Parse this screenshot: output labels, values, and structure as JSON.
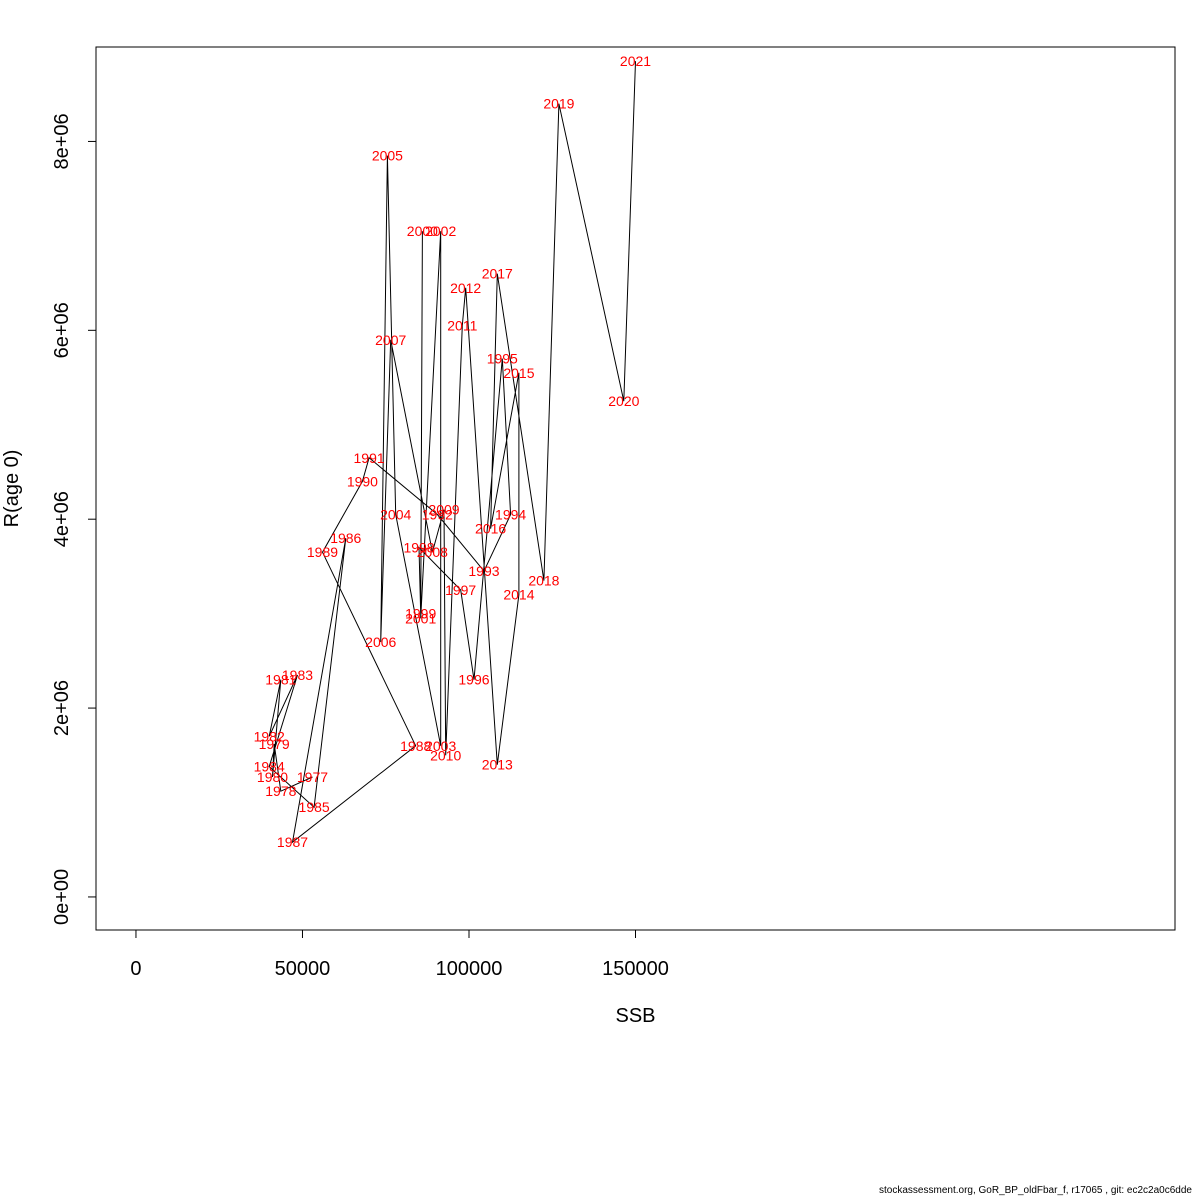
{
  "chart_data": {
    "type": "line",
    "xlabel": "SSB",
    "ylabel": "R(age 0)",
    "xlim": [
      -12000,
      312000
    ],
    "ylim": [
      -350000,
      9000000
    ],
    "xticks": [
      0,
      50000,
      100000,
      150000
    ],
    "xtick_labels": [
      "0",
      "50000",
      "100000",
      "150000"
    ],
    "yticks": [
      0,
      2000000,
      4000000,
      6000000,
      8000000
    ],
    "ytick_labels": [
      "0e+00",
      "2e+06",
      "4e+06",
      "6e+06",
      "8e+06"
    ],
    "grid": false,
    "series": [
      {
        "line_color": "#000000",
        "label_color": "#ff0000",
        "points": [
          {
            "year": "1977",
            "x": 53000,
            "y": 1270000
          },
          {
            "year": "1978",
            "x": 43500,
            "y": 1120000
          },
          {
            "year": "1979",
            "x": 41500,
            "y": 1620000
          },
          {
            "year": "1980",
            "x": 41000,
            "y": 1270000
          },
          {
            "year": "1981",
            "x": 43500,
            "y": 2300000
          },
          {
            "year": "1982",
            "x": 40000,
            "y": 1700000
          },
          {
            "year": "1983",
            "x": 48500,
            "y": 2350000
          },
          {
            "year": "1984",
            "x": 40000,
            "y": 1380000
          },
          {
            "year": "1985",
            "x": 53500,
            "y": 950000
          },
          {
            "year": "1986",
            "x": 63000,
            "y": 3800000
          },
          {
            "year": "1987",
            "x": 47000,
            "y": 580000
          },
          {
            "year": "1988",
            "x": 84000,
            "y": 1600000
          },
          {
            "year": "1989",
            "x": 56000,
            "y": 3650000
          },
          {
            "year": "1990",
            "x": 68000,
            "y": 4400000
          },
          {
            "year": "1991",
            "x": 70000,
            "y": 4650000
          },
          {
            "year": "1992",
            "x": 90500,
            "y": 4050000
          },
          {
            "year": "1993",
            "x": 104500,
            "y": 3450000
          },
          {
            "year": "1994",
            "x": 112500,
            "y": 4050000
          },
          {
            "year": "1995",
            "x": 110000,
            "y": 5700000
          },
          {
            "year": "1996",
            "x": 101500,
            "y": 2300000
          },
          {
            "year": "1997",
            "x": 97500,
            "y": 3250000
          },
          {
            "year": "1998",
            "x": 85000,
            "y": 3700000
          },
          {
            "year": "1999",
            "x": 85500,
            "y": 3000000
          },
          {
            "year": "2000",
            "x": 86000,
            "y": 7050000
          },
          {
            "year": "2001",
            "x": 85500,
            "y": 2950000
          },
          {
            "year": "2002",
            "x": 91500,
            "y": 7050000
          },
          {
            "year": "2003",
            "x": 91500,
            "y": 1600000
          },
          {
            "year": "2004",
            "x": 78000,
            "y": 4050000
          },
          {
            "year": "2005",
            "x": 75500,
            "y": 7850000
          },
          {
            "year": "2006",
            "x": 73500,
            "y": 2700000
          },
          {
            "year": "2007",
            "x": 76500,
            "y": 5900000
          },
          {
            "year": "2008",
            "x": 89000,
            "y": 3650000
          },
          {
            "year": "2009",
            "x": 92500,
            "y": 4100000
          },
          {
            "year": "2010",
            "x": 93000,
            "y": 1500000
          },
          {
            "year": "2011",
            "x": 98000,
            "y": 6050000
          },
          {
            "year": "2012",
            "x": 99000,
            "y": 6450000
          },
          {
            "year": "2013",
            "x": 108500,
            "y": 1400000
          },
          {
            "year": "2014",
            "x": 115000,
            "y": 3200000
          },
          {
            "year": "2015",
            "x": 115000,
            "y": 5550000
          },
          {
            "year": "2016",
            "x": 106500,
            "y": 3900000
          },
          {
            "year": "2017",
            "x": 108500,
            "y": 6600000
          },
          {
            "year": "2018",
            "x": 122500,
            "y": 3350000
          },
          {
            "year": "2019",
            "x": 127000,
            "y": 8400000
          },
          {
            "year": "2020",
            "x": 146500,
            "y": 5250000
          },
          {
            "year": "2021",
            "x": 150000,
            "y": 8850000
          }
        ]
      }
    ]
  },
  "footer": {
    "text": "stockassessment.org, GoR_BP_oldFbar_f, r17065 , git: ec2c2a0c6dde"
  }
}
